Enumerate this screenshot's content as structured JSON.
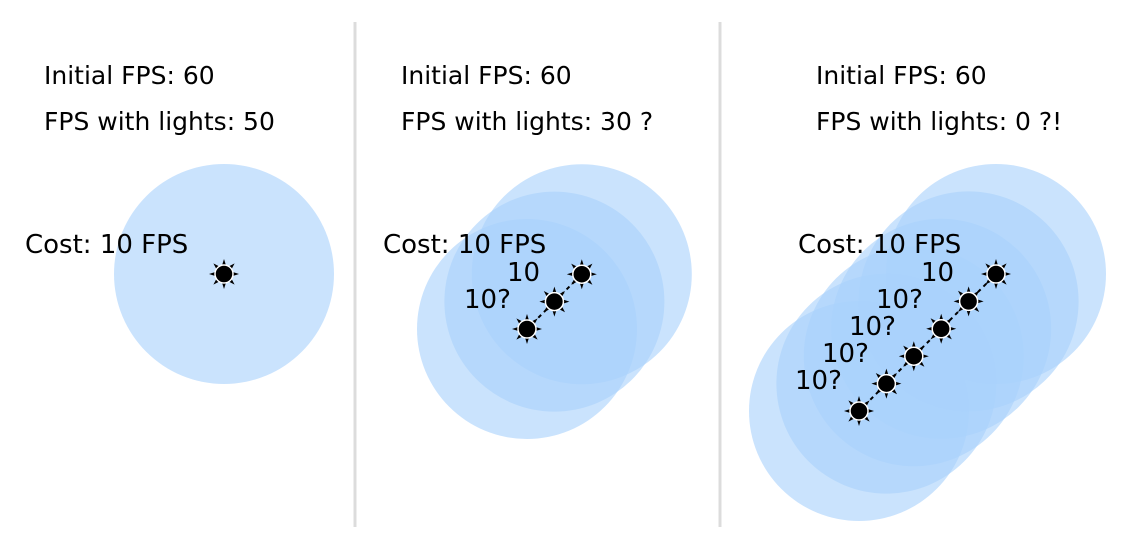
{
  "colors": {
    "background": "#ffffff",
    "divider": "#dcdcdc",
    "light_fill": "#a9d2fb",
    "light_fill_opacity": 0.62,
    "sun_icon": "#000000"
  },
  "panels": [
    {
      "initial_fps": "Initial FPS: 60",
      "fps_with_lights": "FPS with lights: 50",
      "cost": "Cost: 10 FPS",
      "light_count": 1,
      "light_labels": []
    },
    {
      "initial_fps": "Initial FPS: 60",
      "fps_with_lights": "FPS with lights: 30 ?",
      "cost": "Cost: 10 FPS",
      "light_count": 3,
      "light_labels": [
        "10",
        "10?"
      ]
    },
    {
      "initial_fps": "Initial FPS: 60",
      "fps_with_lights": "FPS with lights: 0 ?!",
      "cost": "Cost: 10 FPS",
      "light_count": 6,
      "light_labels": [
        "10",
        "10?",
        "10?",
        "10?",
        "10?"
      ]
    }
  ]
}
